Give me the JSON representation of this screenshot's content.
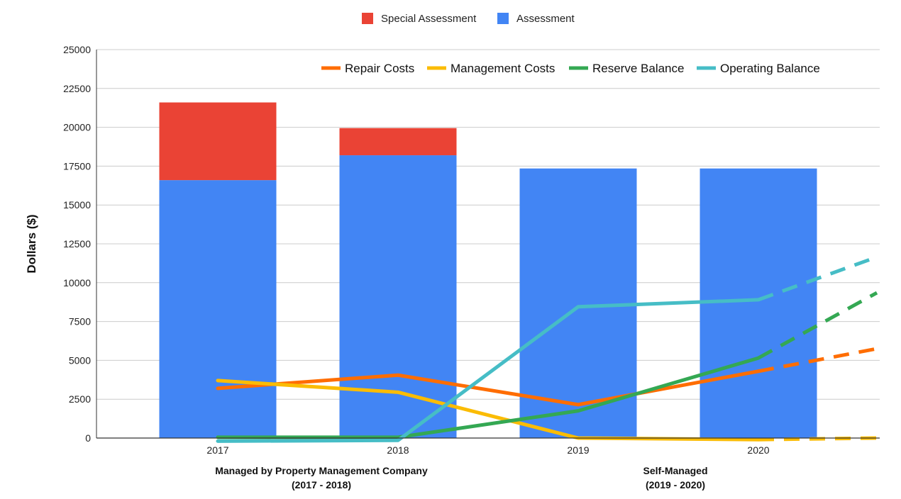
{
  "chart_data": {
    "type": "bar",
    "title": "",
    "xlabel": "",
    "ylabel": "Dollars ($)",
    "ylim": [
      0,
      25000
    ],
    "y_ticks": [
      0,
      2500,
      5000,
      7500,
      10000,
      12500,
      15000,
      17500,
      20000,
      22500,
      25000
    ],
    "grid": true,
    "categories": [
      "2017",
      "2018",
      "2019",
      "2020"
    ],
    "bar_legend_position": "top-center",
    "line_legend_position": "top-right",
    "stacked_series": [
      {
        "name": "Assessment",
        "color": "#4285f4",
        "values": [
          16600,
          18200,
          17350,
          17350
        ]
      },
      {
        "name": "Special Assessment",
        "color": "#ea4335",
        "values": [
          5000,
          1750,
          0,
          0
        ]
      }
    ],
    "line_series": [
      {
        "name": "Repair Costs",
        "color": "#ff6d01",
        "values": [
          3200,
          4050,
          2150,
          4300
        ],
        "projected_end": 5750
      },
      {
        "name": "Management Costs",
        "color": "#fbbc04",
        "values": [
          3700,
          2950,
          0,
          -100
        ],
        "projected_end": 0
      },
      {
        "name": "Reserve Balance",
        "color": "#34a853",
        "values": [
          50,
          50,
          1750,
          5150
        ],
        "projected_end": 9350
      },
      {
        "name": "Operating Balance",
        "color": "#46bdc6",
        "values": [
          -200,
          -150,
          8450,
          8900
        ],
        "projected_end": 11650
      }
    ],
    "group_labels": [
      {
        "line1": "Managed by Property Management Company",
        "line2": "(2017 - 2018)"
      },
      {
        "line1": "Self-Managed",
        "line2": "(2019 - 2020)"
      }
    ]
  }
}
